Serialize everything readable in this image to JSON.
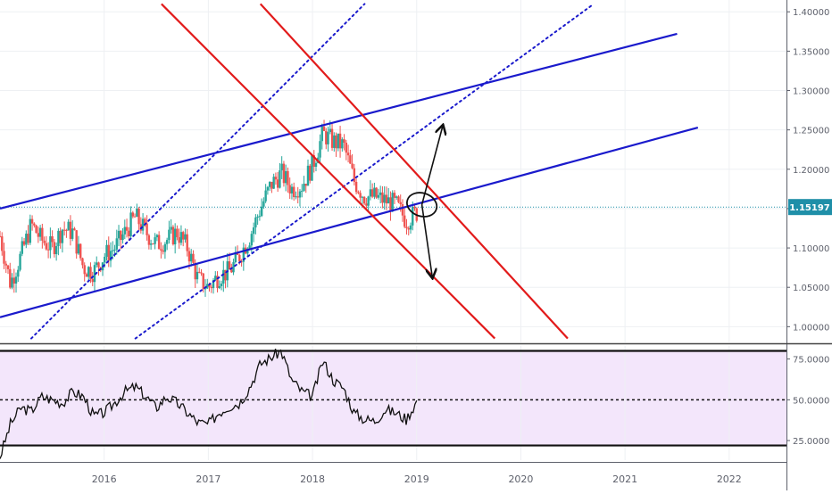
{
  "chart_data": [
    {
      "type": "candlestick",
      "title": "",
      "x_ticks": [
        "2016",
        "2017",
        "2018",
        "2019",
        "2020",
        "2021",
        "2022"
      ],
      "x_range": [
        2015.0,
        2022.55
      ],
      "y_ticks": [
        "1.40000",
        "1.35000",
        "1.30000",
        "1.25000",
        "1.20000",
        "1.15000",
        "1.10000",
        "1.05000",
        "1.00000"
      ],
      "y_range": [
        0.98,
        1.415
      ],
      "current_price": "1.15197",
      "current_price_value": 1.15197,
      "colors": {
        "up": "#26a69a",
        "down": "#ef5350",
        "channel": "#1a1acc",
        "down_channel": "#e21b1b",
        "price_line": "#1f8fa8"
      },
      "series": [
        {
          "name": "",
          "points": [
            [
              2015.0,
              1.115
            ],
            [
              2015.1,
              1.055
            ],
            [
              2015.2,
              1.09
            ],
            [
              2015.3,
              1.13
            ],
            [
              2015.4,
              1.11
            ],
            [
              2015.5,
              1.1
            ],
            [
              2015.6,
              1.125
            ],
            [
              2015.7,
              1.12
            ],
            [
              2015.8,
              1.075
            ],
            [
              2015.9,
              1.07
            ],
            [
              2016.0,
              1.09
            ],
            [
              2016.1,
              1.1
            ],
            [
              2016.2,
              1.12
            ],
            [
              2016.3,
              1.14
            ],
            [
              2016.4,
              1.12
            ],
            [
              2016.5,
              1.105
            ],
            [
              2016.6,
              1.11
            ],
            [
              2016.7,
              1.12
            ],
            [
              2016.8,
              1.1
            ],
            [
              2016.9,
              1.06
            ],
            [
              2017.0,
              1.05
            ],
            [
              2017.1,
              1.065
            ],
            [
              2017.2,
              1.07
            ],
            [
              2017.3,
              1.09
            ],
            [
              2017.4,
              1.115
            ],
            [
              2017.5,
              1.15
            ],
            [
              2017.6,
              1.18
            ],
            [
              2017.7,
              1.195
            ],
            [
              2017.8,
              1.175
            ],
            [
              2017.9,
              1.18
            ],
            [
              2018.0,
              1.205
            ],
            [
              2018.1,
              1.245
            ],
            [
              2018.2,
              1.235
            ],
            [
              2018.3,
              1.23
            ],
            [
              2018.4,
              1.185
            ],
            [
              2018.5,
              1.165
            ],
            [
              2018.6,
              1.165
            ],
            [
              2018.7,
              1.16
            ],
            [
              2018.8,
              1.155
            ],
            [
              2018.9,
              1.135
            ],
            [
              2019.0,
              1.145
            ]
          ]
        }
      ],
      "annotations": [
        {
          "type": "trendline",
          "color": "channel",
          "from": [
            2015.0,
            1.15
          ],
          "to": [
            2021.5,
            1.372
          ]
        },
        {
          "type": "trendline",
          "color": "channel",
          "from": [
            2015.0,
            1.012
          ],
          "to": [
            2021.7,
            1.253
          ]
        },
        {
          "type": "trendline",
          "style": "dotted",
          "color": "channel",
          "from": [
            2015.3,
            0.985
          ],
          "to": [
            2018.5,
            1.41
          ]
        },
        {
          "type": "trendline",
          "style": "dotted",
          "color": "channel",
          "from": [
            2016.3,
            0.985
          ],
          "to": [
            2020.7,
            1.41
          ]
        },
        {
          "type": "trendline",
          "color": "down_channel",
          "from": [
            2016.55,
            1.41
          ],
          "to": [
            2019.75,
            0.985
          ]
        },
        {
          "type": "trendline",
          "color": "down_channel",
          "from": [
            2017.5,
            1.41
          ],
          "to": [
            2020.45,
            0.985
          ]
        },
        {
          "type": "ellipse",
          "center": [
            2019.05,
            1.155
          ]
        },
        {
          "type": "arrow",
          "from": [
            2019.05,
            1.155
          ],
          "to": [
            2019.25,
            1.255
          ]
        },
        {
          "type": "arrow",
          "from": [
            2019.05,
            1.155
          ],
          "to": [
            2019.15,
            1.063
          ]
        }
      ]
    },
    {
      "type": "line",
      "title": "",
      "y_ticks": [
        "75.0000",
        "50.0000",
        "25.0000"
      ],
      "y_range": [
        13,
        83
      ],
      "levels": [
        80,
        50,
        22
      ],
      "series": [
        {
          "name": "",
          "x": [
            2015.0,
            2015.1,
            2015.2,
            2015.3,
            2015.4,
            2015.5,
            2015.6,
            2015.7,
            2015.8,
            2015.9,
            2016.0,
            2016.1,
            2016.2,
            2016.3,
            2016.4,
            2016.5,
            2016.6,
            2016.7,
            2016.8,
            2016.9,
            2017.0,
            2017.1,
            2017.2,
            2017.3,
            2017.4,
            2017.5,
            2017.6,
            2017.7,
            2017.8,
            2017.9,
            2018.0,
            2018.1,
            2018.2,
            2018.3,
            2018.4,
            2018.5,
            2018.6,
            2018.7,
            2018.8,
            2018.9,
            2019.0
          ],
          "values": [
            15,
            35,
            45,
            43,
            52,
            50,
            48,
            55,
            52,
            40,
            42,
            48,
            55,
            58,
            52,
            45,
            52,
            48,
            42,
            36,
            35,
            42,
            46,
            48,
            58,
            72,
            76,
            80,
            62,
            55,
            52,
            74,
            62,
            57,
            42,
            38,
            37,
            44,
            42,
            38,
            49
          ]
        }
      ]
    }
  ]
}
